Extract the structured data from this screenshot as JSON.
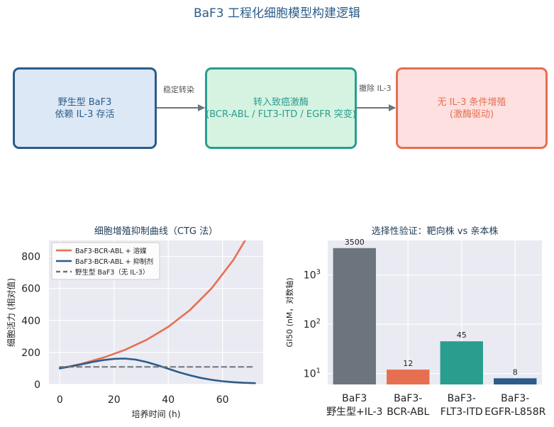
{
  "title": "BaF3 工程化细胞模型构建逻辑",
  "flow": {
    "boxes": [
      {
        "line1": "野生型 BaF3",
        "line2": "依赖 IL-3 存活",
        "fill": "#dce8f5",
        "border": "#2b5c8a"
      },
      {
        "line1": "转入致癌激酶",
        "line2": "(BCR-ABL / FLT3-ITD / EGFR 突变)",
        "fill": "#d6f3e2",
        "border": "#2a9d8f"
      },
      {
        "line1": "无 IL-3 条件增殖",
        "line2": "(激酶驱动)",
        "fill": "#fde0df",
        "border": "#e76f51"
      }
    ],
    "arrows": [
      {
        "label": "稳定转染"
      },
      {
        "label": "撤除 IL-3"
      }
    ]
  },
  "chart_data": [
    {
      "type": "line",
      "title": "细胞增殖抑制曲线（CTG 法）",
      "xlabel": "培养时间 (h)",
      "ylabel": "细胞活力 (相对值)",
      "xlim": [
        -4,
        75
      ],
      "ylim": [
        0,
        900
      ],
      "xticks": [
        0,
        20,
        40,
        60
      ],
      "yticks": [
        0,
        200,
        400,
        600,
        800
      ],
      "grid": true,
      "legend_position": "top-left",
      "series": [
        {
          "name": "BaF3-BCR-ABL + 溶媒",
          "color": "#e76f51",
          "style": "solid",
          "x": [
            0,
            8,
            16,
            24,
            32,
            40,
            48,
            56,
            64,
            72
          ],
          "y": [
            100,
            129,
            167,
            216,
            279,
            360,
            465,
            601,
            777,
            1004
          ]
        },
        {
          "name": "BaF3-BCR-ABL + 抑制剂",
          "color": "#2b5c8a",
          "style": "solid",
          "x": [
            0,
            4,
            8,
            12,
            16,
            20,
            24,
            28,
            32,
            36,
            40,
            44,
            48,
            52,
            56,
            60,
            64,
            68,
            72
          ],
          "y": [
            100,
            112,
            126,
            140,
            152,
            160,
            162,
            155,
            140,
            120,
            98,
            76,
            57,
            41,
            29,
            20,
            14,
            10,
            8
          ]
        },
        {
          "name": "野生型 BaF3（无 IL-3）",
          "color": "#6c757d",
          "style": "dashed",
          "x": [
            0,
            72
          ],
          "y": [
            110,
            110
          ]
        }
      ]
    },
    {
      "type": "bar",
      "title": "选择性验证：靶向株 vs 亲本株",
      "xlabel": "",
      "ylabel": "GI50 (nM，对数轴)",
      "yscale": "log",
      "ylim": [
        6,
        5000
      ],
      "grid": true,
      "categories": [
        {
          "line1": "BaF3",
          "line2": "野生型+IL-3"
        },
        {
          "line1": "BaF3-",
          "line2": "BCR-ABL"
        },
        {
          "line1": "BaF3-",
          "line2": "FLT3-ITD"
        },
        {
          "line1": "BaF3-",
          "line2": "EGFR-L858R"
        }
      ],
      "values": [
        3500,
        12,
        45,
        8
      ],
      "colors": [
        "#6c757d",
        "#e76f51",
        "#2a9d8f",
        "#2b5c8a"
      ]
    }
  ]
}
